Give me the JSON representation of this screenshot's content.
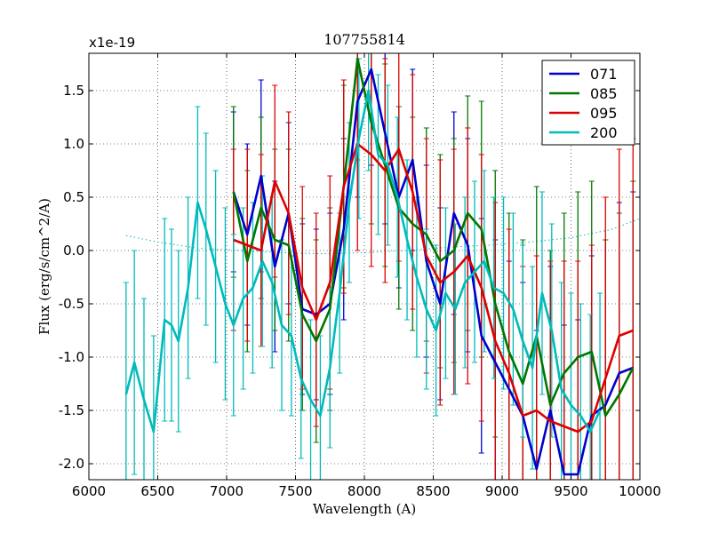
{
  "chart_data": {
    "type": "line",
    "title": "107755814",
    "xlabel": "Wavelength (A)",
    "ylabel": "Flux (erg/s/cm^2/A)",
    "scale_label": "x1e-19",
    "xlim": [
      6000,
      10000
    ],
    "ylim": [
      -2.15,
      1.85
    ],
    "xticks": [
      6000,
      6500,
      7000,
      7500,
      8000,
      8500,
      9000,
      9500,
      10000
    ],
    "yticks": [
      -2.0,
      -1.5,
      -1.0,
      -0.5,
      0.0,
      0.5,
      1.0,
      1.5
    ],
    "ytick_labels": [
      "-2.0",
      "-1.5",
      "-1.0",
      "-0.5",
      "0.0",
      "0.5",
      "1.0",
      "1.5"
    ],
    "grid": true,
    "legend_position": "top-right",
    "series": [
      {
        "name": "071",
        "color": "#0000cc",
        "x": [
          7050,
          7150,
          7250,
          7350,
          7450,
          7550,
          7650,
          7750,
          7850,
          7950,
          8050,
          8150,
          8250,
          8350,
          8450,
          8550,
          8650,
          8750,
          8850,
          8950,
          9050,
          9150,
          9250,
          9350,
          9450,
          9550,
          9650,
          9750,
          9850,
          9950
        ],
        "values": [
          0.55,
          0.15,
          0.7,
          -0.15,
          0.35,
          -0.55,
          -0.6,
          -0.5,
          0.2,
          1.4,
          1.7,
          1.1,
          0.5,
          0.85,
          -0.1,
          -0.5,
          0.35,
          0.05,
          -0.8,
          -1.05,
          -1.3,
          -1.55,
          -2.05,
          -1.5,
          -2.1,
          -2.1,
          -1.55,
          -1.45,
          -1.15,
          -1.1
        ],
        "err": [
          0.75,
          0.85,
          0.9,
          0.8,
          0.85,
          0.8,
          0.8,
          0.85,
          0.85,
          0.9,
          0.9,
          0.85,
          0.85,
          0.85,
          0.9,
          0.9,
          0.95,
          1.0,
          1.1,
          1.15,
          1.2,
          1.25,
          1.3,
          1.35,
          1.4,
          1.45,
          1.5,
          1.55,
          1.6,
          1.65
        ]
      },
      {
        "name": "085",
        "color": "#007700",
        "x": [
          7050,
          7150,
          7250,
          7350,
          7450,
          7550,
          7650,
          7750,
          7850,
          7950,
          8050,
          8150,
          8250,
          8350,
          8450,
          8550,
          8650,
          8750,
          8850,
          8950,
          9050,
          9150,
          9250,
          9350,
          9450,
          9550,
          9650,
          9750,
          9850,
          9950
        ],
        "values": [
          0.55,
          -0.1,
          0.4,
          0.1,
          0.05,
          -0.6,
          -0.85,
          -0.55,
          0.6,
          1.8,
          1.2,
          0.8,
          0.4,
          0.25,
          0.15,
          -0.1,
          0.0,
          0.35,
          0.2,
          -0.5,
          -0.95,
          -1.25,
          -0.8,
          -1.45,
          -1.15,
          -1.0,
          -0.95,
          -1.55,
          -1.35,
          -1.1
        ],
        "err": [
          0.8,
          0.85,
          0.85,
          0.85,
          0.9,
          0.9,
          0.95,
          0.95,
          0.95,
          0.95,
          0.95,
          0.95,
          0.95,
          1.0,
          1.0,
          1.0,
          1.05,
          1.1,
          1.2,
          1.25,
          1.3,
          1.35,
          1.4,
          1.45,
          1.5,
          1.55,
          1.6,
          1.65,
          1.7,
          1.75
        ]
      },
      {
        "name": "095",
        "color": "#dd0000",
        "x": [
          7050,
          7150,
          7250,
          7350,
          7450,
          7550,
          7650,
          7750,
          7850,
          7950,
          8050,
          8150,
          8250,
          8350,
          8450,
          8550,
          8650,
          8750,
          8850,
          8950,
          9050,
          9150,
          9250,
          9350,
          9450,
          9550,
          9650,
          9750,
          9850,
          9950
        ],
        "values": [
          0.1,
          0.05,
          0.0,
          0.65,
          0.35,
          -0.35,
          -0.65,
          -0.3,
          0.6,
          1.0,
          0.9,
          0.75,
          0.95,
          0.55,
          -0.05,
          -0.3,
          -0.2,
          -0.05,
          -0.35,
          -0.85,
          -1.15,
          -1.55,
          -1.5,
          -1.6,
          -1.65,
          -1.7,
          -1.6,
          -1.2,
          -0.8,
          -0.75
        ],
        "err": [
          0.85,
          0.9,
          0.9,
          0.9,
          0.95,
          0.95,
          1.0,
          1.0,
          1.0,
          1.0,
          1.05,
          1.05,
          1.05,
          1.1,
          1.1,
          1.15,
          1.15,
          1.2,
          1.25,
          1.3,
          1.35,
          1.4,
          1.45,
          1.5,
          1.55,
          1.6,
          1.65,
          1.7,
          1.75,
          1.8
        ]
      },
      {
        "name": "200",
        "color": "#00bbbb",
        "x": [
          6270,
          6330,
          6400,
          6470,
          6550,
          6600,
          6650,
          6720,
          6790,
          6850,
          6920,
          6990,
          7050,
          7120,
          7190,
          7260,
          7330,
          7400,
          7470,
          7540,
          7610,
          7680,
          7750,
          7820,
          7890,
          7960,
          8030,
          8100,
          8170,
          8240,
          8310,
          8380,
          8450,
          8520,
          8590,
          8660,
          8730,
          8800,
          8870,
          8940,
          9010,
          9080,
          9150,
          9220,
          9290,
          9360,
          9430,
          9500,
          9570,
          9640,
          9710
        ],
        "values": [
          -1.35,
          -1.05,
          -1.4,
          -1.7,
          -0.65,
          -0.7,
          -0.85,
          -0.35,
          0.45,
          0.2,
          -0.15,
          -0.5,
          -0.7,
          -0.45,
          -0.35,
          -0.1,
          -0.3,
          -0.7,
          -0.8,
          -1.2,
          -1.4,
          -1.55,
          -1.1,
          -0.4,
          0.45,
          1.05,
          1.5,
          0.9,
          0.8,
          0.5,
          0.1,
          -0.25,
          -0.55,
          -0.75,
          -0.4,
          -0.55,
          -0.3,
          -0.2,
          -0.1,
          -0.35,
          -0.4,
          -0.55,
          -0.85,
          -1.1,
          -0.4,
          -0.75,
          -1.3,
          -1.45,
          -1.55,
          -1.7,
          -1.5
        ],
        "err": [
          1.05,
          1.05,
          0.95,
          0.9,
          0.95,
          0.9,
          0.85,
          0.85,
          0.9,
          0.9,
          0.9,
          0.9,
          0.85,
          0.85,
          0.8,
          0.8,
          0.8,
          0.8,
          0.75,
          0.75,
          0.75,
          0.75,
          0.75,
          0.75,
          0.75,
          0.75,
          0.75,
          0.75,
          0.75,
          0.75,
          0.75,
          0.75,
          0.75,
          0.8,
          0.8,
          0.8,
          0.8,
          0.85,
          0.85,
          0.85,
          0.9,
          0.9,
          0.9,
          0.95,
          0.95,
          1.0,
          1.0,
          1.05,
          1.05,
          1.1,
          1.1
        ]
      }
    ],
    "sky_lines": [
      {
        "color": "#00bbbb",
        "x": [
          6270,
          6500,
          6800,
          7100,
          7400,
          7700,
          8000,
          8300,
          8600,
          8900,
          9200,
          9500,
          9800,
          10000
        ],
        "values": [
          0.14,
          0.08,
          0.02,
          0.0,
          -0.02,
          -0.03,
          -0.02,
          0.0,
          0.03,
          0.05,
          0.08,
          0.12,
          0.2,
          0.3
        ]
      }
    ]
  }
}
